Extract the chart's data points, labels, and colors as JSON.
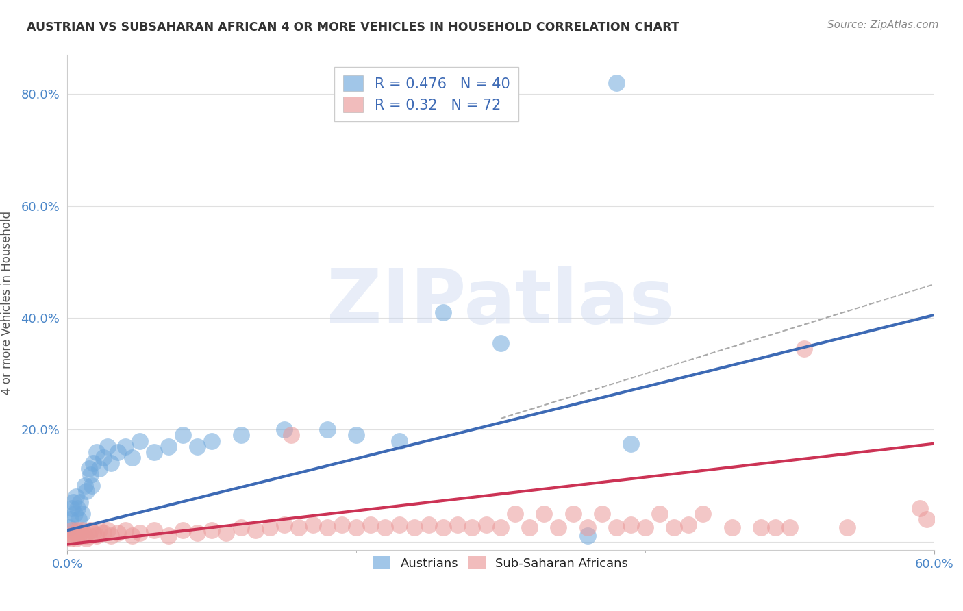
{
  "title": "AUSTRIAN VS SUBSAHARAN AFRICAN 4 OR MORE VEHICLES IN HOUSEHOLD CORRELATION CHART",
  "source": "Source: ZipAtlas.com",
  "ylabel": "4 or more Vehicles in Household",
  "legend_label_austrians": "Austrians",
  "legend_label_subsaharan": "Sub-Saharan Africans",
  "austrian_color": "#6fa8dc",
  "subsaharan_color": "#ea9999",
  "background_color": "#ffffff",
  "grid_color": "#e0e0e0",
  "xlim": [
    0.0,
    0.6
  ],
  "ylim": [
    -0.015,
    0.87
  ],
  "yticks": [
    0.0,
    0.2,
    0.4,
    0.6,
    0.8
  ],
  "ytick_labels": [
    "",
    "20.0%",
    "40.0%",
    "60.0%",
    "80.0%"
  ],
  "xticks": [
    0.0,
    0.6
  ],
  "xtick_labels": [
    "0.0%",
    "60.0%"
  ],
  "watermark_text": "ZIPatlas",
  "austrian_R": 0.476,
  "austrian_N": 40,
  "subsaharan_R": 0.32,
  "subsaharan_N": 72,
  "austrian_line": [
    [
      0.0,
      0.02
    ],
    [
      0.6,
      0.405
    ]
  ],
  "subsaharan_line": [
    [
      0.0,
      -0.005
    ],
    [
      0.6,
      0.175
    ]
  ],
  "austrian_dashed_line": [
    [
      0.3,
      0.22
    ],
    [
      0.6,
      0.46
    ]
  ],
  "austrian_points": [
    [
      0.001,
      0.025
    ],
    [
      0.002,
      0.04
    ],
    [
      0.003,
      0.06
    ],
    [
      0.004,
      0.07
    ],
    [
      0.005,
      0.05
    ],
    [
      0.006,
      0.08
    ],
    [
      0.007,
      0.06
    ],
    [
      0.008,
      0.04
    ],
    [
      0.009,
      0.07
    ],
    [
      0.01,
      0.05
    ],
    [
      0.012,
      0.1
    ],
    [
      0.013,
      0.09
    ],
    [
      0.015,
      0.13
    ],
    [
      0.016,
      0.12
    ],
    [
      0.017,
      0.1
    ],
    [
      0.018,
      0.14
    ],
    [
      0.02,
      0.16
    ],
    [
      0.022,
      0.13
    ],
    [
      0.025,
      0.15
    ],
    [
      0.028,
      0.17
    ],
    [
      0.03,
      0.14
    ],
    [
      0.035,
      0.16
    ],
    [
      0.04,
      0.17
    ],
    [
      0.045,
      0.15
    ],
    [
      0.05,
      0.18
    ],
    [
      0.06,
      0.16
    ],
    [
      0.07,
      0.17
    ],
    [
      0.08,
      0.19
    ],
    [
      0.09,
      0.17
    ],
    [
      0.1,
      0.18
    ],
    [
      0.12,
      0.19
    ],
    [
      0.15,
      0.2
    ],
    [
      0.18,
      0.2
    ],
    [
      0.2,
      0.19
    ],
    [
      0.23,
      0.18
    ],
    [
      0.26,
      0.41
    ],
    [
      0.3,
      0.355
    ],
    [
      0.36,
      0.01
    ],
    [
      0.39,
      0.175
    ],
    [
      0.38,
      0.82
    ]
  ],
  "subsaharan_points": [
    [
      0.001,
      0.01
    ],
    [
      0.002,
      0.005
    ],
    [
      0.003,
      0.02
    ],
    [
      0.004,
      0.01
    ],
    [
      0.005,
      0.015
    ],
    [
      0.006,
      0.005
    ],
    [
      0.007,
      0.02
    ],
    [
      0.008,
      0.01
    ],
    [
      0.009,
      0.015
    ],
    [
      0.01,
      0.02
    ],
    [
      0.012,
      0.01
    ],
    [
      0.013,
      0.005
    ],
    [
      0.015,
      0.01
    ],
    [
      0.016,
      0.02
    ],
    [
      0.018,
      0.015
    ],
    [
      0.02,
      0.01
    ],
    [
      0.022,
      0.02
    ],
    [
      0.025,
      0.015
    ],
    [
      0.028,
      0.02
    ],
    [
      0.03,
      0.01
    ],
    [
      0.035,
      0.015
    ],
    [
      0.04,
      0.02
    ],
    [
      0.045,
      0.01
    ],
    [
      0.05,
      0.015
    ],
    [
      0.06,
      0.02
    ],
    [
      0.07,
      0.01
    ],
    [
      0.08,
      0.02
    ],
    [
      0.09,
      0.015
    ],
    [
      0.1,
      0.02
    ],
    [
      0.11,
      0.015
    ],
    [
      0.12,
      0.025
    ],
    [
      0.13,
      0.02
    ],
    [
      0.14,
      0.025
    ],
    [
      0.15,
      0.03
    ],
    [
      0.155,
      0.19
    ],
    [
      0.16,
      0.025
    ],
    [
      0.17,
      0.03
    ],
    [
      0.18,
      0.025
    ],
    [
      0.19,
      0.03
    ],
    [
      0.2,
      0.025
    ],
    [
      0.21,
      0.03
    ],
    [
      0.22,
      0.025
    ],
    [
      0.23,
      0.03
    ],
    [
      0.24,
      0.025
    ],
    [
      0.25,
      0.03
    ],
    [
      0.26,
      0.025
    ],
    [
      0.27,
      0.03
    ],
    [
      0.28,
      0.025
    ],
    [
      0.29,
      0.03
    ],
    [
      0.3,
      0.025
    ],
    [
      0.31,
      0.05
    ],
    [
      0.32,
      0.025
    ],
    [
      0.33,
      0.05
    ],
    [
      0.34,
      0.025
    ],
    [
      0.35,
      0.05
    ],
    [
      0.36,
      0.025
    ],
    [
      0.37,
      0.05
    ],
    [
      0.38,
      0.025
    ],
    [
      0.39,
      0.03
    ],
    [
      0.4,
      0.025
    ],
    [
      0.41,
      0.05
    ],
    [
      0.42,
      0.025
    ],
    [
      0.43,
      0.03
    ],
    [
      0.44,
      0.05
    ],
    [
      0.46,
      0.025
    ],
    [
      0.48,
      0.025
    ],
    [
      0.49,
      0.025
    ],
    [
      0.5,
      0.025
    ],
    [
      0.51,
      0.345
    ],
    [
      0.54,
      0.025
    ],
    [
      0.59,
      0.06
    ],
    [
      0.595,
      0.04
    ]
  ]
}
